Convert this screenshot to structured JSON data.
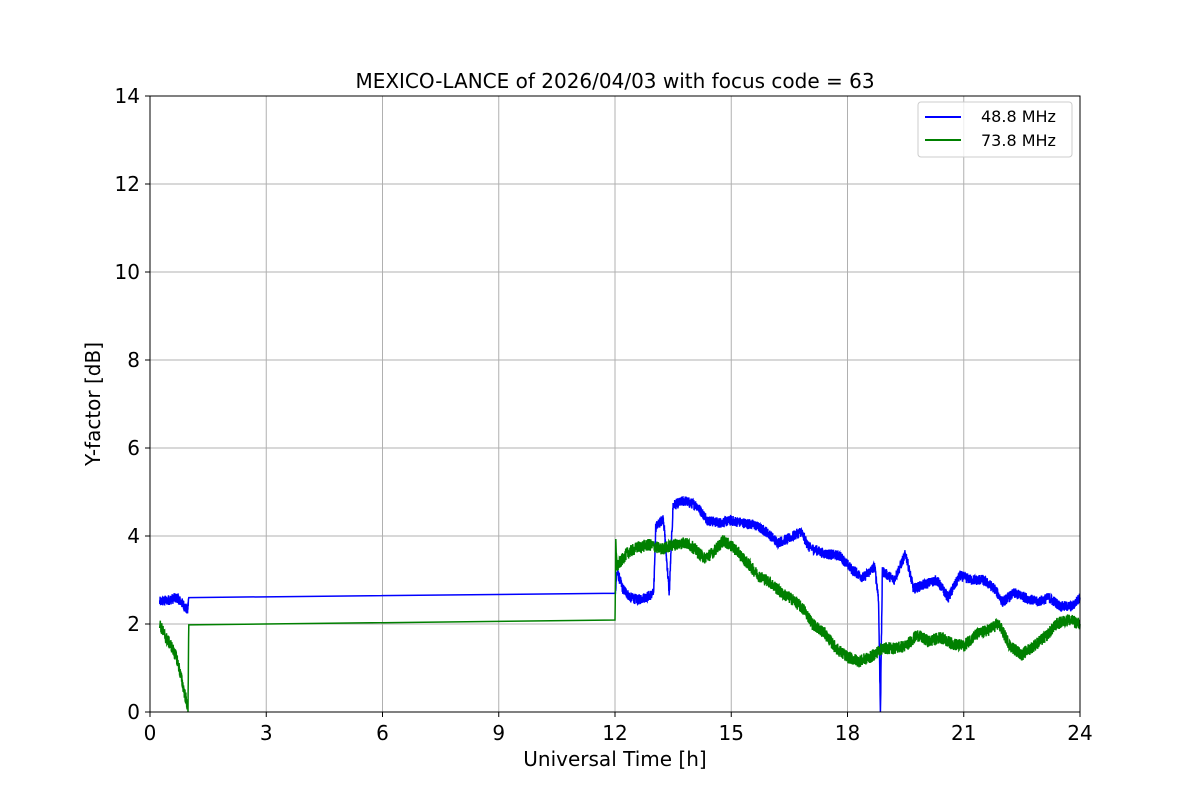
{
  "chart_data": {
    "type": "line",
    "title": "MEXICO-LANCE of 2026/04/03 with focus code = 63",
    "xlabel": "Universal Time [h]",
    "ylabel": "Y-factor [dB]",
    "xlim": [
      0,
      24
    ],
    "ylim": [
      0,
      14
    ],
    "xticks": [
      0,
      3,
      6,
      9,
      12,
      15,
      18,
      21,
      24
    ],
    "yticks": [
      0,
      2,
      4,
      6,
      8,
      10,
      12,
      14
    ],
    "xtick_labels": [
      "0",
      "3",
      "6",
      "9",
      "12",
      "15",
      "18",
      "21",
      "24"
    ],
    "ytick_labels": [
      "0",
      "2",
      "4",
      "6",
      "8",
      "10",
      "12",
      "14"
    ],
    "grid": true,
    "legend_position": "top-right",
    "series": [
      {
        "name": "48.8 MHz",
        "color": "#0000ff",
        "noise": 0.12,
        "points": [
          [
            0.25,
            2.5
          ],
          [
            0.5,
            2.55
          ],
          [
            0.7,
            2.6
          ],
          [
            0.9,
            2.4
          ],
          [
            0.97,
            2.3
          ],
          [
            1.0,
            2.6
          ],
          [
            12.0,
            2.65
          ],
          [
            12.05,
            3.2
          ],
          [
            12.2,
            2.8
          ],
          [
            12.4,
            2.6
          ],
          [
            12.6,
            2.55
          ],
          [
            12.9,
            2.65
          ],
          [
            13.0,
            2.7
          ],
          [
            13.05,
            4.2
          ],
          [
            13.25,
            4.4
          ],
          [
            13.4,
            2.7
          ],
          [
            13.5,
            4.7
          ],
          [
            13.8,
            4.8
          ],
          [
            14.1,
            4.7
          ],
          [
            14.4,
            4.35
          ],
          [
            14.7,
            4.3
          ],
          [
            15.0,
            4.35
          ],
          [
            15.3,
            4.3
          ],
          [
            15.6,
            4.25
          ],
          [
            15.9,
            4.1
          ],
          [
            16.2,
            3.85
          ],
          [
            16.5,
            3.95
          ],
          [
            16.8,
            4.1
          ],
          [
            17.0,
            3.75
          ],
          [
            17.4,
            3.6
          ],
          [
            17.8,
            3.55
          ],
          [
            18.1,
            3.25
          ],
          [
            18.4,
            3.05
          ],
          [
            18.7,
            3.3
          ],
          [
            18.8,
            2.6
          ],
          [
            18.85,
            0.0
          ],
          [
            18.9,
            3.2
          ],
          [
            19.2,
            3.0
          ],
          [
            19.5,
            3.6
          ],
          [
            19.7,
            2.8
          ],
          [
            20.0,
            2.9
          ],
          [
            20.3,
            3.0
          ],
          [
            20.6,
            2.6
          ],
          [
            20.9,
            3.1
          ],
          [
            21.2,
            3.0
          ],
          [
            21.5,
            3.0
          ],
          [
            21.8,
            2.8
          ],
          [
            22.0,
            2.5
          ],
          [
            22.3,
            2.7
          ],
          [
            22.6,
            2.6
          ],
          [
            22.9,
            2.5
          ],
          [
            23.2,
            2.6
          ],
          [
            23.5,
            2.4
          ],
          [
            23.8,
            2.4
          ],
          [
            24.0,
            2.6
          ]
        ]
      },
      {
        "name": "73.8 MHz",
        "color": "#008000",
        "noise": 0.14,
        "points": [
          [
            0.25,
            2.0
          ],
          [
            0.4,
            1.7
          ],
          [
            0.55,
            1.5
          ],
          [
            0.7,
            1.2
          ],
          [
            0.85,
            0.6
          ],
          [
            0.95,
            0.2
          ],
          [
            0.98,
            0.05
          ],
          [
            1.0,
            1.98
          ],
          [
            12.0,
            2.17
          ],
          [
            12.02,
            3.8
          ],
          [
            12.05,
            3.3
          ],
          [
            12.3,
            3.6
          ],
          [
            12.6,
            3.75
          ],
          [
            12.9,
            3.8
          ],
          [
            13.2,
            3.7
          ],
          [
            13.5,
            3.8
          ],
          [
            13.8,
            3.85
          ],
          [
            14.0,
            3.75
          ],
          [
            14.3,
            3.5
          ],
          [
            14.5,
            3.6
          ],
          [
            14.8,
            3.9
          ],
          [
            15.1,
            3.7
          ],
          [
            15.4,
            3.4
          ],
          [
            15.7,
            3.1
          ],
          [
            16.0,
            2.95
          ],
          [
            16.3,
            2.7
          ],
          [
            16.6,
            2.55
          ],
          [
            16.9,
            2.3
          ],
          [
            17.1,
            2.0
          ],
          [
            17.4,
            1.8
          ],
          [
            17.7,
            1.45
          ],
          [
            18.0,
            1.25
          ],
          [
            18.3,
            1.15
          ],
          [
            18.6,
            1.25
          ],
          [
            18.9,
            1.45
          ],
          [
            19.2,
            1.45
          ],
          [
            19.5,
            1.5
          ],
          [
            19.8,
            1.75
          ],
          [
            20.1,
            1.6
          ],
          [
            20.4,
            1.7
          ],
          [
            20.7,
            1.55
          ],
          [
            21.0,
            1.5
          ],
          [
            21.3,
            1.75
          ],
          [
            21.6,
            1.85
          ],
          [
            21.9,
            2.0
          ],
          [
            22.2,
            1.5
          ],
          [
            22.5,
            1.3
          ],
          [
            22.8,
            1.5
          ],
          [
            23.1,
            1.7
          ],
          [
            23.4,
            2.0
          ],
          [
            23.7,
            2.1
          ],
          [
            24.0,
            2.0
          ]
        ]
      }
    ]
  }
}
